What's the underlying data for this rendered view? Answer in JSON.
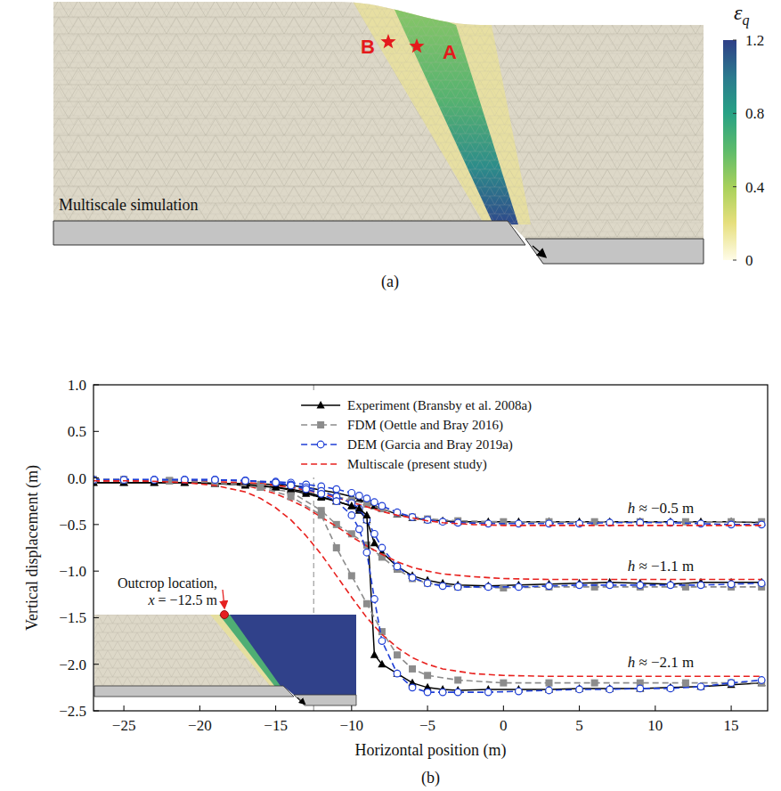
{
  "panel_a": {
    "label": "(a)",
    "title": "Multiscale simulation",
    "points": [
      "A",
      "B"
    ],
    "colorbar": {
      "label": "εq",
      "range": [
        0,
        1.2
      ],
      "ticks": [
        0,
        0.4,
        0.8,
        1.2
      ]
    }
  },
  "chart_data": {
    "type": "line",
    "panel_label": "(b)",
    "xlabel": "Horizontal position (m)",
    "ylabel": "Vertical displacement (m)",
    "xlim": [
      -27,
      17.4
    ],
    "ylim": [
      -2.5,
      1.0
    ],
    "xticks": [
      {
        "value": -25,
        "label": "−25"
      },
      {
        "value": -20,
        "label": "−20"
      },
      {
        "value": -15,
        "label": "−15"
      },
      {
        "value": -10,
        "label": "−10"
      },
      {
        "value": -5,
        "label": "−5"
      },
      0,
      5,
      10,
      15
    ],
    "yticks": [
      {
        "value": 1.0,
        "label": "1.0"
      },
      {
        "value": 0.5,
        "label": "0.5"
      },
      {
        "value": 0.0,
        "label": "0.0"
      },
      {
        "value": -0.5,
        "label": "−0.5"
      },
      {
        "value": -1.0,
        "label": "−1.0"
      },
      {
        "value": -1.5,
        "label": "−1.5"
      },
      {
        "value": -2.0,
        "label": "−2.0"
      },
      {
        "value": -2.5,
        "label": "−2.5"
      }
    ],
    "legend": "top",
    "reference_line": {
      "x": -12.5,
      "label": [
        "Outcrop location,",
        "x = −12.5 m"
      ]
    },
    "curve_labels": [
      "h ≈ −0.5 m",
      "h ≈ −1.1 m",
      "h ≈ −2.1 m"
    ],
    "series": [
      {
        "name": "Experiment (Bransby et al. 2008a)",
        "color": "#000000",
        "marker": "triangle",
        "line_style": "solid",
        "x": [
          -27,
          -25,
          -23,
          -21,
          -19,
          -17,
          -15,
          -14,
          -13,
          -12,
          -11,
          -10,
          -9.5,
          -9,
          -8.5,
          -8,
          -7,
          -6,
          -5,
          -4,
          -3,
          -1,
          1,
          3,
          5,
          7,
          9,
          11,
          13,
          15,
          17
        ],
        "values": [
          -0.05,
          -0.05,
          -0.05,
          -0.05,
          -0.06,
          -0.06,
          -0.07,
          -0.08,
          -0.1,
          -0.13,
          -0.16,
          -0.2,
          -0.23,
          -0.26,
          -0.3,
          -0.33,
          -0.39,
          -0.43,
          -0.45,
          -0.46,
          -0.47,
          -0.47,
          -0.47,
          -0.47,
          -0.47,
          -0.47,
          -0.47,
          -0.47,
          -0.47,
          -0.47,
          -0.48
        ]
      },
      {
        "name": "FDM (Oettle and Bray 2016)",
        "color": "#8c8c8c",
        "marker": "square",
        "line_style": "dashed",
        "x": [
          -27,
          -25,
          -22,
          -19,
          -16,
          -14,
          -12,
          -11,
          -10,
          -9,
          -8,
          -7,
          -6,
          -5,
          -3,
          0,
          3,
          6,
          9,
          12,
          15,
          17
        ],
        "values": [
          -0.02,
          -0.02,
          -0.03,
          -0.05,
          -0.07,
          -0.1,
          -0.15,
          -0.2,
          -0.24,
          -0.28,
          -0.33,
          -0.38,
          -0.42,
          -0.44,
          -0.46,
          -0.47,
          -0.47,
          -0.47,
          -0.47,
          -0.47,
          -0.47,
          -0.47
        ]
      },
      {
        "name": "DEM (Garcia and Bray 2019a)",
        "color": "#1f3fd6",
        "marker": "circle-open",
        "line_style": "dashed",
        "x": [
          -27,
          -25,
          -23,
          -21,
          -19,
          -17,
          -15,
          -14,
          -13,
          -12,
          -11,
          -10,
          -9.5,
          -9,
          -8.5,
          -8,
          -7,
          -6,
          -5,
          -4,
          -3,
          -1,
          1,
          3,
          5,
          7,
          9,
          11,
          13,
          15,
          17
        ],
        "values": [
          -0.02,
          -0.02,
          -0.02,
          -0.02,
          -0.02,
          -0.03,
          -0.04,
          -0.05,
          -0.07,
          -0.09,
          -0.12,
          -0.16,
          -0.19,
          -0.22,
          -0.26,
          -0.3,
          -0.37,
          -0.42,
          -0.45,
          -0.47,
          -0.48,
          -0.49,
          -0.49,
          -0.49,
          -0.49,
          -0.48,
          -0.48,
          -0.48,
          -0.49,
          -0.5,
          -0.5
        ]
      },
      {
        "name": "Multiscale (present study)",
        "color": "#e8211e",
        "marker": "none",
        "line_style": "dashed",
        "x": [
          -27,
          -24,
          -21,
          -19,
          -17,
          -16,
          -15,
          -14,
          -13,
          -12,
          -11,
          -10,
          -9,
          -8,
          -7,
          -6,
          -5,
          -4,
          -2,
          0,
          3,
          6,
          10,
          14,
          17
        ],
        "values": [
          -0.03,
          -0.03,
          -0.03,
          -0.04,
          -0.05,
          -0.06,
          -0.08,
          -0.1,
          -0.13,
          -0.17,
          -0.21,
          -0.26,
          -0.31,
          -0.36,
          -0.4,
          -0.43,
          -0.46,
          -0.48,
          -0.5,
          -0.51,
          -0.51,
          -0.51,
          -0.51,
          -0.51,
          -0.51
        ]
      },
      {
        "name": "Experiment (Bransby et al. 2008a)",
        "color": "#000000",
        "marker": "triangle",
        "line_style": "solid",
        "x": [
          -27,
          -25,
          -23,
          -21,
          -19,
          -17,
          -15,
          -14,
          -13,
          -12,
          -11,
          -10,
          -9.5,
          -9,
          -8.5,
          -8,
          -7,
          -6,
          -5,
          -4,
          -3,
          -1,
          1,
          3,
          5,
          7,
          9,
          11,
          13,
          15,
          17
        ],
        "values": [
          -0.05,
          -0.05,
          -0.05,
          -0.05,
          -0.06,
          -0.07,
          -0.1,
          -0.13,
          -0.17,
          -0.21,
          -0.25,
          -0.3,
          -0.35,
          -0.45,
          -0.7,
          -0.8,
          -0.95,
          -1.05,
          -1.1,
          -1.13,
          -1.15,
          -1.16,
          -1.15,
          -1.14,
          -1.13,
          -1.12,
          -1.13,
          -1.14,
          -1.12,
          -1.12,
          -1.12
        ]
      },
      {
        "name": "FDM (Oettle and Bray 2016)",
        "color": "#8c8c8c",
        "marker": "square",
        "line_style": "dashed",
        "x": [
          -27,
          -25,
          -22,
          -19,
          -16,
          -14,
          -12,
          -11,
          -10,
          -9,
          -8,
          -7,
          -6,
          -5,
          -3,
          0,
          3,
          6,
          9,
          12,
          15,
          17
        ],
        "values": [
          -0.02,
          -0.02,
          -0.03,
          -0.05,
          -0.1,
          -0.15,
          -0.35,
          -0.5,
          -0.6,
          -0.72,
          -0.85,
          -0.98,
          -1.08,
          -1.13,
          -1.17,
          -1.18,
          -1.17,
          -1.17,
          -1.17,
          -1.17,
          -1.17,
          -1.17
        ]
      },
      {
        "name": "DEM (Garcia and Bray 2019a)",
        "color": "#1f3fd6",
        "marker": "circle-open",
        "line_style": "dashed",
        "x": [
          -27,
          -25,
          -23,
          -21,
          -19,
          -17,
          -15,
          -14,
          -13,
          -12,
          -11,
          -10,
          -9.5,
          -9,
          -8.5,
          -8,
          -7,
          -6,
          -5,
          -4,
          -3,
          -1,
          1,
          3,
          5,
          7,
          9,
          11,
          13,
          15,
          17
        ],
        "values": [
          -0.02,
          -0.02,
          -0.02,
          -0.02,
          -0.02,
          -0.03,
          -0.05,
          -0.07,
          -0.1,
          -0.14,
          -0.2,
          -0.27,
          -0.33,
          -0.45,
          -0.6,
          -0.75,
          -0.95,
          -1.07,
          -1.13,
          -1.16,
          -1.17,
          -1.17,
          -1.17,
          -1.16,
          -1.15,
          -1.15,
          -1.15,
          -1.15,
          -1.15,
          -1.14,
          -1.13
        ]
      },
      {
        "name": "Multiscale (present study)",
        "color": "#e8211e",
        "marker": "none",
        "line_style": "dashed",
        "x": [
          -27,
          -24,
          -21,
          -19,
          -17,
          -16,
          -15,
          -14,
          -13,
          -12,
          -11,
          -10,
          -9,
          -8,
          -7,
          -6,
          -5,
          -4,
          -2,
          0,
          3,
          6,
          10,
          14,
          17
        ],
        "values": [
          -0.03,
          -0.03,
          -0.04,
          -0.05,
          -0.08,
          -0.12,
          -0.17,
          -0.24,
          -0.32,
          -0.42,
          -0.52,
          -0.63,
          -0.73,
          -0.82,
          -0.9,
          -0.96,
          -1.0,
          -1.03,
          -1.06,
          -1.08,
          -1.09,
          -1.09,
          -1.09,
          -1.09,
          -1.09
        ]
      },
      {
        "name": "Experiment (Bransby et al. 2008a)",
        "color": "#000000",
        "marker": "triangle",
        "line_style": "solid",
        "x": [
          -27,
          -25,
          -23,
          -21,
          -19,
          -17,
          -15,
          -14,
          -13,
          -12,
          -11,
          -10,
          -9.5,
          -9,
          -8.5,
          -8,
          -7,
          -6,
          -5,
          -4,
          -3,
          -1,
          1,
          3,
          5,
          7,
          9,
          11,
          13,
          15,
          17
        ],
        "values": [
          -0.05,
          -0.05,
          -0.05,
          -0.05,
          -0.06,
          -0.08,
          -0.1,
          -0.12,
          -0.15,
          -0.2,
          -0.25,
          -0.3,
          -0.33,
          -0.4,
          -1.9,
          -2.0,
          -2.1,
          -2.2,
          -2.25,
          -2.27,
          -2.28,
          -2.27,
          -2.27,
          -2.27,
          -2.26,
          -2.26,
          -2.26,
          -2.25,
          -2.24,
          -2.22,
          -2.2
        ]
      },
      {
        "name": "FDM (Oettle and Bray 2016)",
        "color": "#8c8c8c",
        "marker": "square",
        "line_style": "dashed",
        "x": [
          -27,
          -25,
          -22,
          -19,
          -16,
          -14,
          -12,
          -11,
          -10,
          -9,
          -8,
          -7,
          -6,
          -5,
          -3,
          0,
          3,
          6,
          9,
          12,
          15,
          17
        ],
        "values": [
          -0.02,
          -0.02,
          -0.03,
          -0.05,
          -0.1,
          -0.2,
          -0.4,
          -0.75,
          -1.05,
          -1.35,
          -1.65,
          -1.9,
          -2.05,
          -2.12,
          -2.17,
          -2.2,
          -2.2,
          -2.2,
          -2.2,
          -2.2,
          -2.2,
          -2.2
        ]
      },
      {
        "name": "DEM (Garcia and Bray 2019a)",
        "color": "#1f3fd6",
        "marker": "circle-open",
        "line_style": "dashed",
        "x": [
          -27,
          -25,
          -23,
          -21,
          -19,
          -17,
          -15,
          -14,
          -13,
          -12,
          -11,
          -10,
          -9.5,
          -9,
          -8.5,
          -8,
          -7,
          -6,
          -5,
          -4,
          -3,
          -1,
          1,
          3,
          5,
          7,
          9,
          11,
          13,
          15,
          17
        ],
        "values": [
          -0.02,
          -0.02,
          -0.02,
          -0.02,
          -0.02,
          -0.03,
          -0.05,
          -0.08,
          -0.12,
          -0.17,
          -0.25,
          -0.4,
          -0.55,
          -0.8,
          -1.3,
          -1.75,
          -2.1,
          -2.25,
          -2.3,
          -2.3,
          -2.3,
          -2.3,
          -2.29,
          -2.28,
          -2.27,
          -2.27,
          -2.26,
          -2.26,
          -2.24,
          -2.2,
          -2.17
        ]
      },
      {
        "name": "Multiscale (present study)",
        "color": "#e8211e",
        "marker": "none",
        "line_style": "dashed",
        "x": [
          -27,
          -24,
          -21,
          -19,
          -17,
          -16,
          -15,
          -14,
          -13,
          -12,
          -11,
          -10,
          -9,
          -8,
          -7,
          -6,
          -5,
          -4,
          -2,
          0,
          3,
          6,
          10,
          14,
          17
        ],
        "values": [
          -0.03,
          -0.03,
          -0.05,
          -0.08,
          -0.15,
          -0.22,
          -0.32,
          -0.45,
          -0.62,
          -0.82,
          -1.05,
          -1.28,
          -1.5,
          -1.68,
          -1.82,
          -1.93,
          -2.0,
          -2.05,
          -2.1,
          -2.12,
          -2.13,
          -2.13,
          -2.13,
          -2.13,
          -2.13
        ]
      }
    ]
  }
}
